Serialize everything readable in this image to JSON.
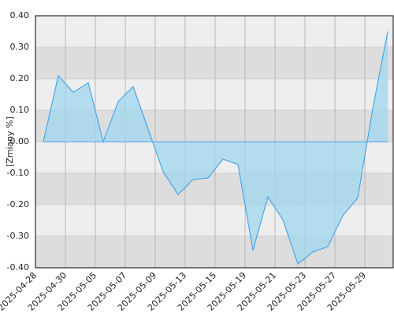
{
  "chart_data": {
    "type": "area",
    "y_label": "[Zmiany %]",
    "categories": [
      "2025-04-28",
      null,
      "2025-04-30",
      null,
      "2025-05-05",
      null,
      "2025-05-07",
      null,
      "2025-05-09",
      null,
      "2025-05-13",
      null,
      "2025-05-15",
      null,
      "2025-05-19",
      null,
      "2025-05-21",
      null,
      "2025-05-23",
      null,
      "2025-05-27",
      null,
      "2025-05-29",
      null
    ],
    "values": [
      0,
      0.21,
      0.157,
      0.187,
      0,
      0.128,
      0.175,
      0.04,
      -0.095,
      -0.168,
      -0.12,
      -0.115,
      -0.055,
      -0.072,
      -0.345,
      -0.175,
      -0.248,
      -0.388,
      -0.35,
      -0.333,
      -0.235,
      -0.178,
      0.105,
      0.35
    ],
    "color": "#4da6e8",
    "fill": "#9fd6ef",
    "ylim": [
      -0.4,
      0.4
    ],
    "yticks": [
      {
        "value": -0.4,
        "label": "-0.40"
      },
      {
        "value": -0.3,
        "label": "-0.30"
      },
      {
        "value": -0.2,
        "label": "-0.20"
      },
      {
        "value": -0.1,
        "label": "-0.10"
      },
      {
        "value": 0,
        "label": "0.00"
      },
      {
        "value": 0.1,
        "label": "0.10"
      },
      {
        "value": 0.2,
        "label": "0.20"
      },
      {
        "value": 0.3,
        "label": "0.30"
      },
      {
        "value": 0.4,
        "label": "0.40"
      }
    ],
    "grid": true
  }
}
